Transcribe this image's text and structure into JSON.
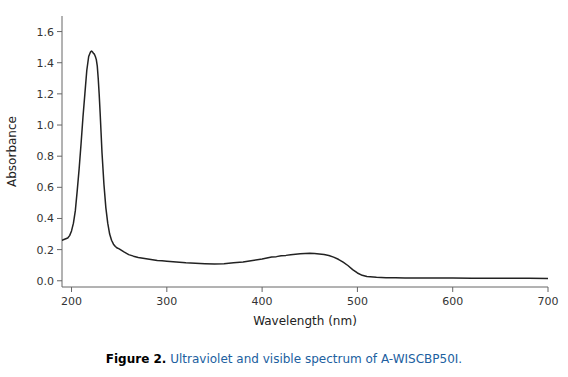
{
  "chart_data": {
    "type": "line",
    "xlabel": "Wavelength (nm)",
    "ylabel": "Absorbance",
    "xlim": [
      190,
      700
    ],
    "ylim": [
      -0.04,
      1.7
    ],
    "xticks": [
      200,
      300,
      400,
      500,
      600,
      700
    ],
    "yticks": [
      {
        "value": 0.0,
        "label": "0.0"
      },
      0.2,
      0.4,
      0.6,
      0.8,
      {
        "value": 1.0,
        "label": "1.0"
      },
      1.2,
      1.4,
      1.6
    ],
    "grid": false,
    "color": "#222222",
    "annotations": [
      {
        "text": "Figure 2.",
        "color": "#000000"
      },
      {
        "text": " Ultraviolet and visible spectrum of A-WISCBP50I.",
        "color": "#2060a0"
      }
    ],
    "x": [
      190,
      192,
      194,
      196,
      198,
      200,
      202,
      204,
      206,
      208,
      210,
      212,
      214,
      216,
      218,
      220,
      221,
      222,
      223,
      224,
      225,
      226,
      227,
      228,
      229,
      230,
      231,
      232,
      234,
      236,
      238,
      240,
      242,
      244,
      246,
      248,
      250,
      255,
      260,
      265,
      270,
      275,
      280,
      285,
      290,
      295,
      300,
      310,
      320,
      330,
      340,
      350,
      360,
      370,
      380,
      390,
      400,
      410,
      415,
      420,
      425,
      430,
      435,
      440,
      445,
      450,
      455,
      460,
      465,
      470,
      475,
      480,
      485,
      490,
      495,
      500,
      505,
      510,
      520,
      530,
      540,
      550,
      560,
      570,
      580,
      590,
      600,
      620,
      640,
      660,
      680,
      700
    ],
    "values": [
      0.26,
      0.265,
      0.27,
      0.275,
      0.29,
      0.32,
      0.37,
      0.45,
      0.58,
      0.72,
      0.88,
      1.05,
      1.2,
      1.35,
      1.44,
      1.47,
      1.475,
      1.47,
      1.46,
      1.455,
      1.44,
      1.42,
      1.38,
      1.3,
      1.2,
      1.08,
      0.95,
      0.82,
      0.62,
      0.47,
      0.37,
      0.3,
      0.26,
      0.235,
      0.22,
      0.21,
      0.205,
      0.185,
      0.168,
      0.158,
      0.15,
      0.145,
      0.14,
      0.135,
      0.13,
      0.128,
      0.125,
      0.12,
      0.115,
      0.112,
      0.11,
      0.108,
      0.11,
      0.115,
      0.12,
      0.13,
      0.14,
      0.152,
      0.155,
      0.16,
      0.163,
      0.167,
      0.17,
      0.173,
      0.175,
      0.176,
      0.175,
      0.172,
      0.168,
      0.162,
      0.152,
      0.138,
      0.12,
      0.098,
      0.072,
      0.05,
      0.035,
      0.027,
      0.022,
      0.02,
      0.019,
      0.018,
      0.018,
      0.017,
      0.017,
      0.017,
      0.017,
      0.016,
      0.016,
      0.016,
      0.016,
      0.015
    ]
  }
}
